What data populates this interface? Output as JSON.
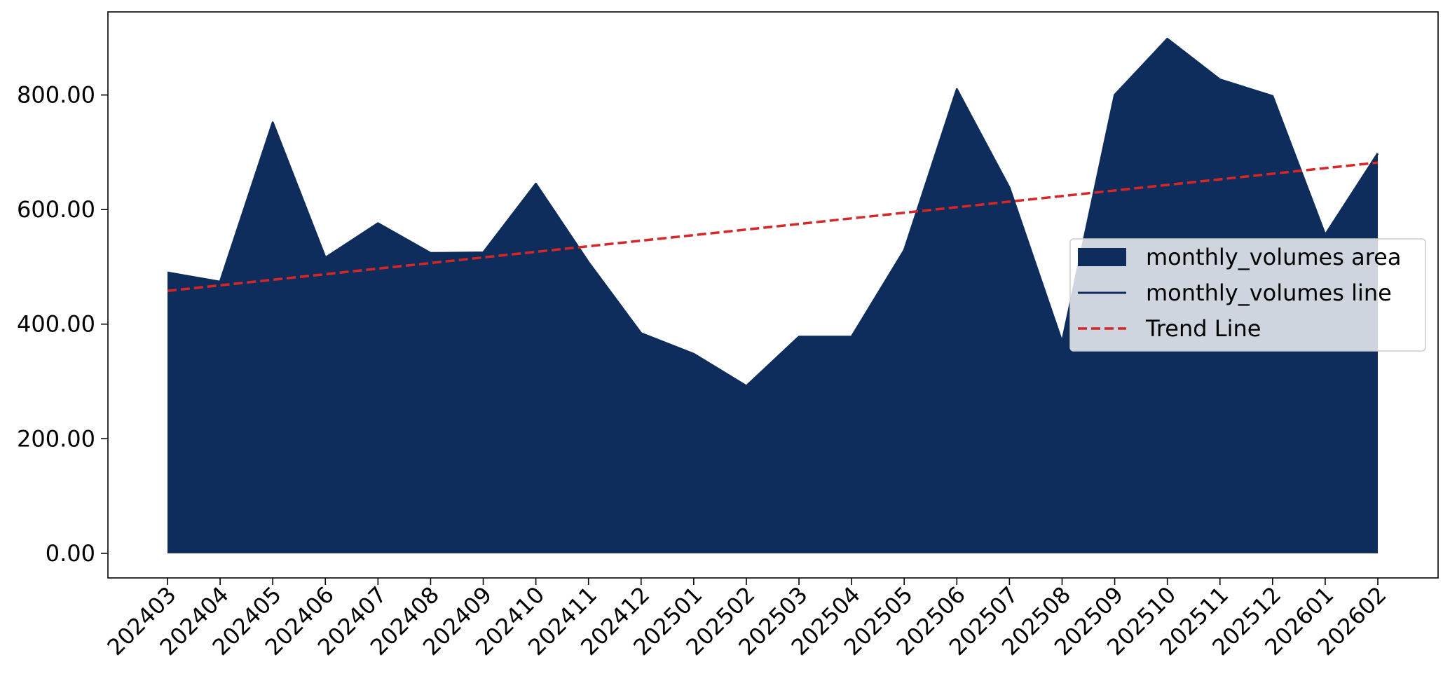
{
  "chart_data": {
    "type": "area",
    "title": "",
    "xlabel": "",
    "ylabel": "",
    "categories": [
      "202403",
      "202404",
      "202405",
      "202406",
      "202407",
      "202408",
      "202409",
      "202410",
      "202411",
      "202412",
      "202501",
      "202502",
      "202503",
      "202504",
      "202505",
      "202506",
      "202507",
      "202508",
      "202509",
      "202510",
      "202511",
      "202512",
      "202601",
      "202602"
    ],
    "series": [
      {
        "name": "monthly_volumes area",
        "kind": "area",
        "color": "#0e2d5c",
        "values": [
          490,
          474,
          752,
          516,
          576,
          524,
          525,
          645,
          508,
          384,
          348,
          292,
          378,
          378,
          529,
          810,
          638,
          369,
          800,
          898,
          827,
          798,
          556,
          698
        ]
      },
      {
        "name": "monthly_volumes line",
        "kind": "line",
        "color": "#0e2d5c",
        "values": [
          490,
          474,
          752,
          516,
          576,
          524,
          525,
          645,
          508,
          384,
          348,
          292,
          378,
          378,
          529,
          810,
          638,
          369,
          800,
          898,
          827,
          798,
          556,
          698
        ]
      },
      {
        "name": "Trend Line",
        "kind": "trend",
        "color": "#d62728",
        "dashed": true,
        "start": 458,
        "end": 682
      }
    ],
    "ylim": [
      -43,
      945
    ],
    "yticks": [
      0,
      200,
      400,
      600,
      800
    ],
    "ytick_labels": [
      "0.00",
      "200.00",
      "400.00",
      "600.00",
      "800.00"
    ],
    "legend_position": "center-right",
    "grid": false
  }
}
